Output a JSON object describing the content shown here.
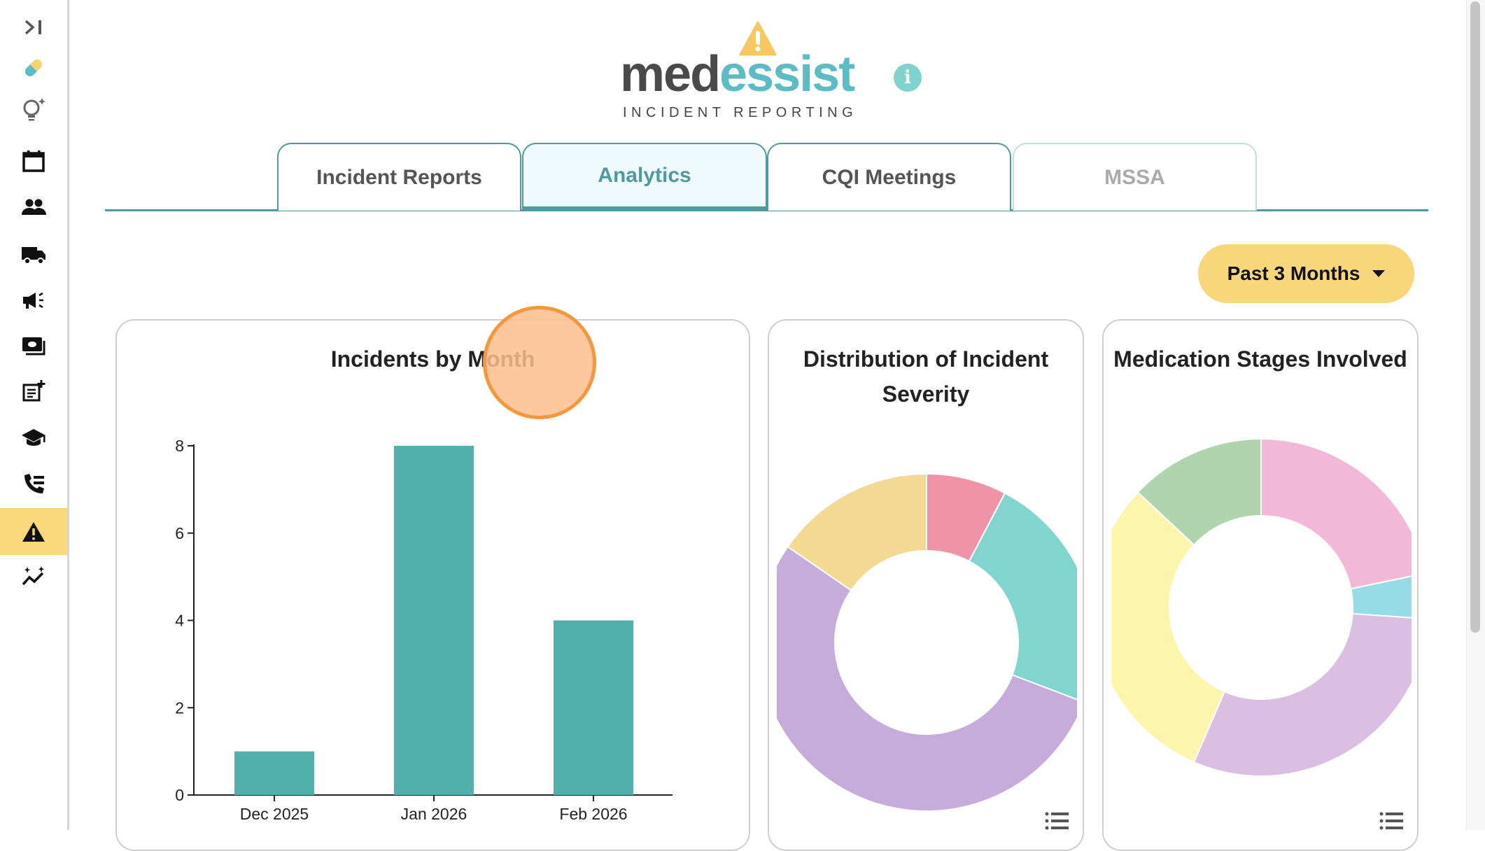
{
  "sidebar": {
    "items": [
      {
        "name": "collapse-icon"
      },
      {
        "name": "pill-icon"
      },
      {
        "name": "lightbulb-sparkle-icon"
      },
      {
        "name": "calendar-icon"
      },
      {
        "name": "people-icon"
      },
      {
        "name": "truck-icon"
      },
      {
        "name": "megaphone-icon"
      },
      {
        "name": "cash-icon"
      },
      {
        "name": "note-add-icon"
      },
      {
        "name": "graduation-cap-icon"
      },
      {
        "name": "phone-forward-icon"
      },
      {
        "name": "warning-icon",
        "active": true
      },
      {
        "name": "analytics-sparkle-icon"
      }
    ]
  },
  "header": {
    "logo_main_a": "med",
    "logo_main_b": "essist",
    "logo_sub": "INCIDENT REPORTING",
    "info_label": "i"
  },
  "tabs": [
    {
      "label": "Incident Reports"
    },
    {
      "label": "Analytics",
      "active": true
    },
    {
      "label": "CQI Meetings"
    },
    {
      "label": "MSSA",
      "disabled": true
    }
  ],
  "filter": {
    "label": "Past 3 Months"
  },
  "colors": {
    "accent": "#4f9a9f",
    "bar": "#52b0ad",
    "button": "#f8d77a"
  },
  "chart_data": [
    {
      "type": "bar",
      "title": "Incidents by Month",
      "categories": [
        "Dec 2025",
        "Jan 2026",
        "Feb 2026"
      ],
      "values": [
        1,
        8,
        4
      ],
      "yticks": [
        0,
        2,
        4,
        6,
        8
      ],
      "ylim": [
        0,
        8
      ],
      "xlabel": "",
      "ylabel": ""
    },
    {
      "type": "pie",
      "title": "Distribution of Incident Severity",
      "title_lines": [
        "Distribution of Incident",
        "Severity"
      ],
      "values": [
        1,
        3,
        7,
        2
      ],
      "colors": [
        "#f093a8",
        "#82d5cf",
        "#c6acdb",
        "#f2da92"
      ]
    },
    {
      "type": "pie",
      "title": "Medication Stages Involved",
      "values": [
        5,
        1,
        7,
        7,
        3
      ],
      "colors": [
        "#f3b8d7",
        "#97dbe6",
        "#dabfe2",
        "#fdf5ab",
        "#b0d4ad"
      ]
    }
  ]
}
